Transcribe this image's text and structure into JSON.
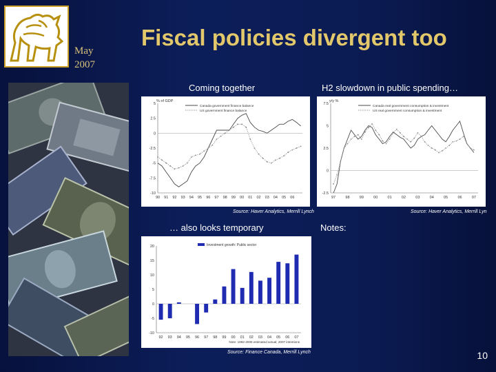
{
  "slide": {
    "date_month": "May",
    "date_year": "2007",
    "title": "Fiscal policies divergent too",
    "page_number": "10",
    "heading_coming": "Coming together",
    "heading_h2": "H2 slowdown in public spending…",
    "heading_also": "… also looks temporary",
    "notes_label": "Notes:",
    "source_1": "Source: Haver Analytics, Merrill Lynch",
    "source_2": "Source: Haver Analytics, Merrill Lyn",
    "source_3": "Source: Finance Canada, Merrill Lynch",
    "colors": {
      "title": "#e3c86b",
      "background": "#0c1e5a",
      "bar": "#1f2bb0"
    }
  },
  "chart_data": [
    {
      "type": "line",
      "ylabel": "% of GDP",
      "ylim": [
        -10,
        5
      ],
      "yticks": [
        "5",
        "2.5",
        "0",
        "-2.5",
        "-5",
        "-7.5",
        "-10"
      ],
      "xticks": [
        "90",
        "91",
        "92",
        "93",
        "94",
        "95",
        "96",
        "97",
        "98",
        "99",
        "00",
        "01",
        "02",
        "03",
        "04",
        "05",
        "06"
      ],
      "xlim": [
        1990,
        2007.2
      ],
      "series": [
        {
          "name": "Canada government finance balance",
          "style": "solid",
          "x": [
            1990,
            1990.5,
            1991,
            1991.5,
            1992,
            1992.5,
            1993,
            1993.5,
            1994,
            1994.5,
            1995,
            1995.5,
            1996,
            1996.5,
            1997,
            1997.5,
            1998,
            1998.5,
            1999,
            1999.5,
            2000,
            2000.5,
            2001,
            2001.5,
            2002,
            2002.5,
            2003,
            2003.5,
            2004,
            2004.5,
            2005,
            2005.5,
            2006,
            2006.5,
            2007
          ],
          "y": [
            -5,
            -5.5,
            -6.5,
            -7.5,
            -8.5,
            -9,
            -8.5,
            -8,
            -6.5,
            -5.5,
            -5,
            -4,
            -2.5,
            -1,
            0.5,
            0.5,
            0.5,
            0.5,
            1.5,
            2.5,
            3,
            3.3,
            1.8,
            1,
            0.5,
            0.3,
            0,
            0.5,
            1,
            1.5,
            1.5,
            2,
            2.3,
            1.8,
            1.2
          ]
        },
        {
          "name": "US government finance balance",
          "style": "dotted",
          "x": [
            1990,
            1990.5,
            1991,
            1991.5,
            1992,
            1992.5,
            1993,
            1993.5,
            1994,
            1994.5,
            1995,
            1995.5,
            1996,
            1996.5,
            1997,
            1997.5,
            1998,
            1998.5,
            1999,
            1999.5,
            2000,
            2000.5,
            2001,
            2001.5,
            2002,
            2002.5,
            2003,
            2003.5,
            2004,
            2004.5,
            2005,
            2005.5,
            2006,
            2006.5,
            2007
          ],
          "y": [
            -4,
            -4.5,
            -5,
            -5.5,
            -6,
            -5.8,
            -5.5,
            -5,
            -4,
            -3.7,
            -3.5,
            -3,
            -2.5,
            -2,
            -1,
            -0.5,
            0,
            0.5,
            1,
            1.5,
            1.5,
            1,
            -1,
            -2.5,
            -3.5,
            -4.2,
            -4.8,
            -5,
            -4.5,
            -4.2,
            -3.8,
            -3.2,
            -2.8,
            -2.5,
            -2.2
          ]
        }
      ]
    },
    {
      "type": "line",
      "ylabel": "y/y %",
      "ylim": [
        -2.5,
        7.5
      ],
      "yticks": [
        "7.5",
        "5",
        "2.5",
        "0",
        "-2.5"
      ],
      "xticks": [
        "97",
        "98",
        "99",
        "00",
        "01",
        "02",
        "03",
        "04",
        "05",
        "06",
        "07"
      ],
      "xlim": [
        1996.8,
        2007.3
      ],
      "series": [
        {
          "name": "Canada real government consumption & investment",
          "style": "solid",
          "x": [
            1997,
            1997.25,
            1997.5,
            1997.75,
            1998,
            1998.25,
            1998.5,
            1998.75,
            1999,
            1999.25,
            1999.5,
            1999.75,
            2000,
            2000.25,
            2000.5,
            2000.75,
            2001,
            2001.25,
            2001.5,
            2001.75,
            2002,
            2002.25,
            2002.5,
            2002.75,
            2003,
            2003.25,
            2003.5,
            2003.75,
            2004,
            2004.25,
            2004.5,
            2004.75,
            2005,
            2005.25,
            2005.5,
            2005.75,
            2006,
            2006.25,
            2006.5,
            2006.75,
            2007
          ],
          "y": [
            -2.5,
            -1.5,
            1,
            2.5,
            3.5,
            4.5,
            4,
            3.5,
            3.8,
            4.5,
            5,
            4.8,
            4,
            3.5,
            3,
            3.2,
            3.8,
            4.3,
            4,
            3.7,
            3.5,
            3,
            2.5,
            2.8,
            3.5,
            3.8,
            4,
            4.5,
            5,
            4.5,
            4,
            3.5,
            3.2,
            3.8,
            4.5,
            5,
            5.5,
            4.2,
            3,
            2.5,
            2
          ]
        },
        {
          "name": "US real government consumption & investment",
          "style": "dotted",
          "x": [
            1997,
            1997.25,
            1997.5,
            1997.75,
            1998,
            1998.25,
            1998.5,
            1998.75,
            1999,
            1999.25,
            1999.5,
            1999.75,
            2000,
            2000.25,
            2000.5,
            2000.75,
            2001,
            2001.25,
            2001.5,
            2001.75,
            2002,
            2002.25,
            2002.5,
            2002.75,
            2003,
            2003.25,
            2003.5,
            2003.75,
            2004,
            2004.25,
            2004.5,
            2004.75,
            2005,
            2005.25,
            2005.5,
            2005.75,
            2006,
            2006.25,
            2006.5,
            2006.75,
            2007
          ],
          "y": [
            -1.5,
            -0.5,
            1,
            2.5,
            3,
            3.5,
            3.8,
            4,
            3.5,
            4.3,
            4.8,
            5.2,
            4.5,
            4,
            3.3,
            3,
            3.5,
            4.2,
            4.6,
            4.2,
            3.8,
            3.5,
            3.2,
            3.6,
            4.2,
            3.8,
            3.2,
            2.8,
            2.5,
            2.3,
            2,
            2.2,
            2.5,
            2.8,
            3.2,
            3.3,
            3.5,
            3.8,
            3,
            2.5,
            2.3
          ]
        }
      ]
    },
    {
      "type": "bar",
      "series": [
        {
          "name": "Investment growth: Public sector"
        }
      ],
      "ylim": [
        -10,
        20
      ],
      "yticks": [
        "20",
        "15",
        "10",
        "5",
        "0",
        "-5",
        "-10"
      ],
      "categories": [
        "92",
        "93",
        "94",
        "95",
        "96",
        "97",
        "98",
        "99",
        "00",
        "01",
        "02",
        "03",
        "04",
        "05",
        "06",
        "07"
      ],
      "values": [
        -5.5,
        -5,
        0.5,
        0,
        -7,
        -3,
        1.5,
        6,
        12,
        5.5,
        11,
        8,
        9,
        14.5,
        14,
        17
      ],
      "note": "Note: 1992-2006 estimated actual; 2007 intentions"
    }
  ]
}
